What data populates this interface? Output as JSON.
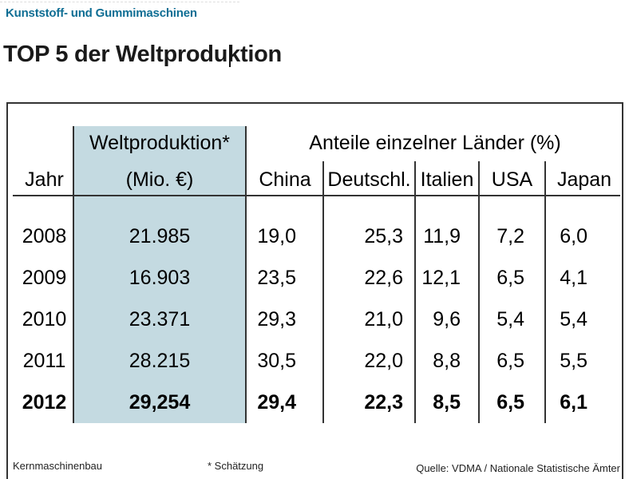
{
  "page": {
    "kicker": "Kunststoff- und Gummimaschinen",
    "title": "TOP 5 der Weltproduktion"
  },
  "table": {
    "year_header": "Jahr",
    "world_production_header_line1": "Weltproduktion*",
    "world_production_header_line2": "(Mio. €)",
    "shares_group_header": "Anteile einzelner Länder (%)",
    "country_headers": [
      "China",
      "Deutschl.",
      "Italien",
      "USA",
      "Japan"
    ],
    "rows": [
      {
        "year": "2008",
        "world_production": "21.985",
        "shares": [
          "19,0",
          "25,3",
          "11,9",
          "7,2",
          "6,0"
        ]
      },
      {
        "year": "2009",
        "world_production": "16.903",
        "shares": [
          "23,5",
          "22,6",
          "12,1",
          "6,5",
          "4,1"
        ]
      },
      {
        "year": "2010",
        "world_production": "23.371",
        "shares": [
          "29,3",
          "21,0",
          "9,6",
          "5,4",
          "5,4"
        ]
      },
      {
        "year": "2011",
        "world_production": "28.215",
        "shares": [
          "30,5",
          "22,0",
          "8,8",
          "6,5",
          "5,5"
        ]
      },
      {
        "year": "2012",
        "world_production": "29,254",
        "shares": [
          "29,4",
          "22,3",
          "8,5",
          "6,5",
          "6,1"
        ]
      }
    ],
    "footnotes": {
      "left": "Kernmaschinenbau",
      "center": "* Schätzung",
      "right": "Quelle: VDMA / Nationale Statistische Ämter"
    }
  },
  "colors": {
    "accent_teal": "#0f6e94",
    "highlight_column": "#c4dae1",
    "table_border": "#333333"
  }
}
